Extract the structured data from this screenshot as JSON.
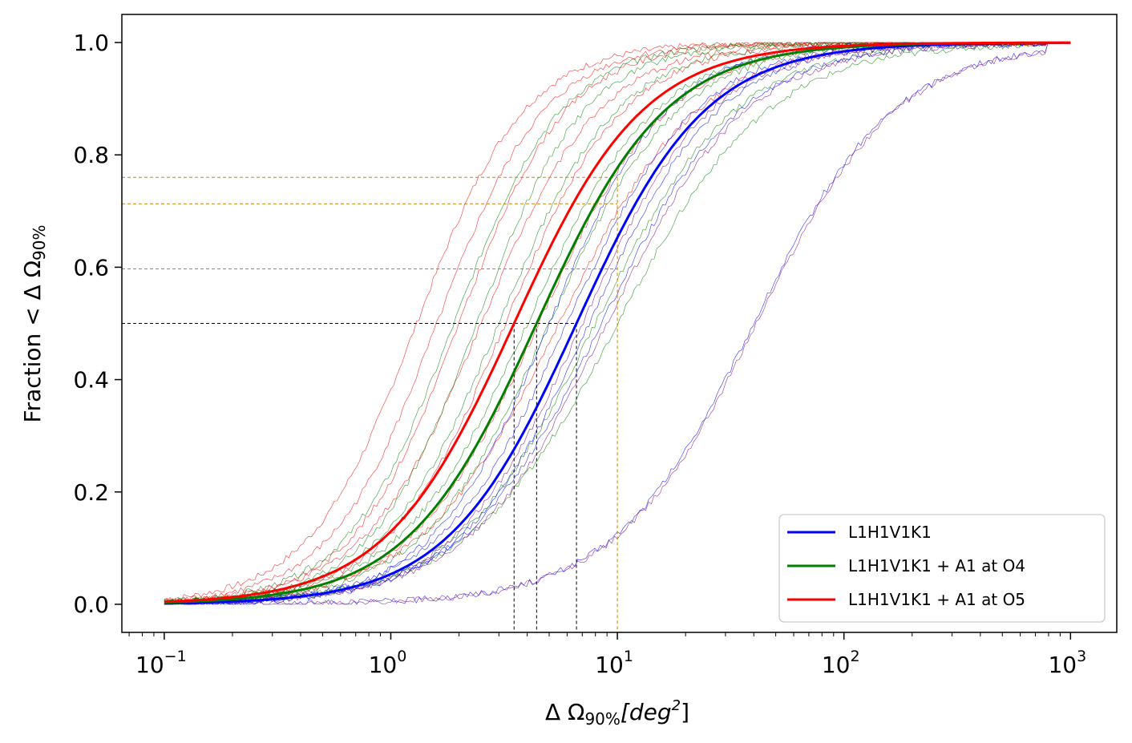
{
  "chart_data": {
    "type": "line",
    "title": "",
    "xlabel": {
      "prefix": "Δ Ω",
      "sub": "90%",
      "suffix": "[deg",
      "sup": "2",
      "close": "]"
    },
    "ylabel": {
      "prefix": "Fraction < Δ Ω",
      "sub": "90%"
    },
    "xscale": "log",
    "xlim": [
      0.065,
      1600
    ],
    "ylim": [
      -0.05,
      1.05
    ],
    "x_ticks": [
      {
        "base": "10",
        "exp": "−1",
        "value": 0.1
      },
      {
        "base": "10",
        "exp": "0",
        "value": 1
      },
      {
        "base": "10",
        "exp": "1",
        "value": 10
      },
      {
        "base": "10",
        "exp": "2",
        "value": 100
      },
      {
        "base": "10",
        "exp": "3",
        "value": 1000
      }
    ],
    "y_ticks": [
      "0.0",
      "0.2",
      "0.4",
      "0.6",
      "0.8",
      "1.0"
    ],
    "grid": false,
    "legend_position": "bottom-right",
    "series": [
      {
        "name": "L1H1V1K1",
        "color": "#0000ff",
        "median": 6.6,
        "width": 1.2
      },
      {
        "name": "L1H1V1K1 + A1 at O4",
        "color": "#008000",
        "median": 4.4,
        "width": 1.2
      },
      {
        "name": "L1H1V1K1 + A1 at O5",
        "color": "#ff0000",
        "median": 3.5,
        "width": 1.2
      }
    ],
    "thin_curves": [
      {
        "color": "#ff0000",
        "median": 1.3,
        "width": 1.0
      },
      {
        "color": "#ff0000",
        "median": 1.6,
        "width": 1.0
      },
      {
        "color": "#ff0000",
        "median": 2.0,
        "width": 1.0
      },
      {
        "color": "#ff0000",
        "median": 2.5,
        "width": 1.1
      },
      {
        "color": "#ff0000",
        "median": 3.2,
        "width": 1.1
      },
      {
        "color": "#ff0000",
        "median": 4.5,
        "width": 1.2
      },
      {
        "color": "#ff0000",
        "median": 5.5,
        "width": 1.3
      },
      {
        "color": "#008000",
        "median": 1.9,
        "width": 1.0
      },
      {
        "color": "#008000",
        "median": 2.4,
        "width": 1.0
      },
      {
        "color": "#008000",
        "median": 3.0,
        "width": 1.1
      },
      {
        "color": "#008000",
        "median": 4.0,
        "width": 1.2
      },
      {
        "color": "#008000",
        "median": 5.0,
        "width": 1.2
      },
      {
        "color": "#008000",
        "median": 8.0,
        "width": 1.3
      },
      {
        "color": "#008000",
        "median": 10.0,
        "width": 1.4
      },
      {
        "color": "#0000ff",
        "median": 5.0,
        "width": 1.1
      },
      {
        "color": "#0000ff",
        "median": 6.0,
        "width": 1.2
      },
      {
        "color": "#0000ff",
        "median": 7.5,
        "width": 1.2
      },
      {
        "color": "#0000ff",
        "median": 8.5,
        "width": 1.3
      },
      {
        "color": "#0000ff",
        "median": 40.0,
        "width": 1.3
      },
      {
        "color": "#800080",
        "median": 7.0,
        "width": 1.2
      },
      {
        "color": "#800080",
        "median": 9.0,
        "width": 1.3
      },
      {
        "color": "#800080",
        "median": 41.0,
        "width": 1.3
      }
    ],
    "reference_lines": {
      "black": {
        "y": 0.5,
        "x_values": [
          3.5,
          4.4,
          6.6
        ]
      },
      "orange": {
        "x": 10,
        "y_values": [
          0.76,
          0.713,
          0.597
        ]
      }
    }
  }
}
